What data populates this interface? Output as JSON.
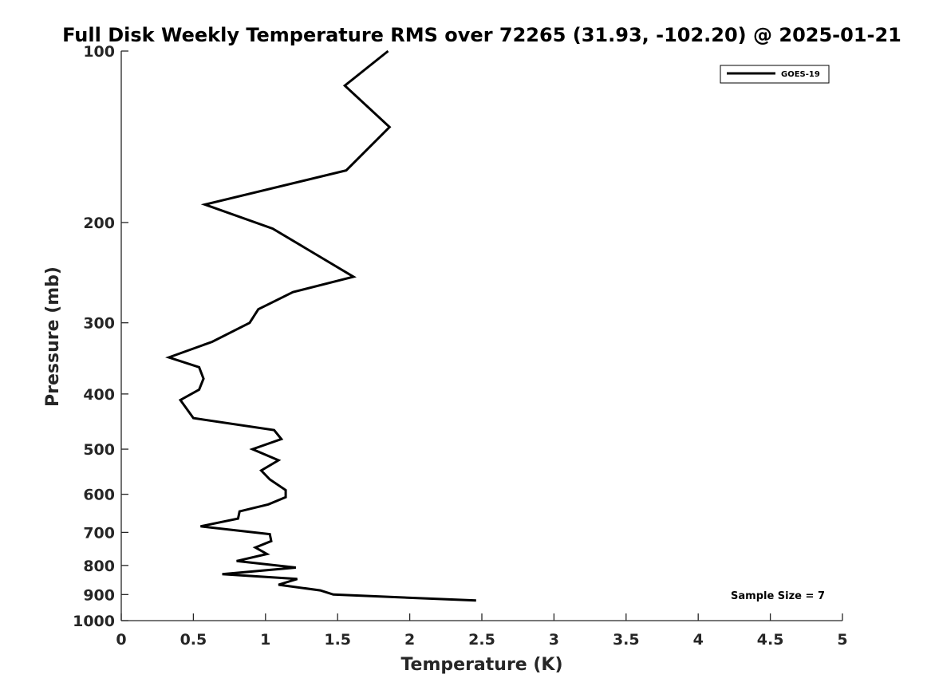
{
  "chart_data": {
    "type": "line",
    "title": "Full Disk Weekly Temperature RMS over 72265 (31.93, -102.20) @ 2025-01-21",
    "xlabel": "Temperature (K)",
    "ylabel": "Pressure (mb)",
    "xlim": [
      0,
      5
    ],
    "ylim": [
      100,
      1000
    ],
    "y_scale": "log",
    "y_reversed": true,
    "grid": false,
    "legend_position": "top-right",
    "x_ticks": [
      "0",
      "0.5",
      "1",
      "1.5",
      "2",
      "2.5",
      "3",
      "3.5",
      "4",
      "4.5",
      "5"
    ],
    "y_ticks": [
      "100",
      "200",
      "300",
      "400",
      "500",
      "600",
      "700",
      "800",
      "900",
      "1000"
    ],
    "series": [
      {
        "name": "GOES-19",
        "color": "#000000",
        "points": [
          [
            1.85,
            100
          ],
          [
            1.55,
            115
          ],
          [
            1.86,
            136
          ],
          [
            1.56,
            162
          ],
          [
            0.58,
            186
          ],
          [
            1.05,
            205
          ],
          [
            1.61,
            249
          ],
          [
            1.19,
            265
          ],
          [
            0.95,
            284
          ],
          [
            0.89,
            300
          ],
          [
            0.63,
            324
          ],
          [
            0.33,
            345
          ],
          [
            0.54,
            359
          ],
          [
            0.57,
            376
          ],
          [
            0.54,
            393
          ],
          [
            0.41,
            410
          ],
          [
            0.5,
            441
          ],
          [
            1.06,
            463
          ],
          [
            1.11,
            480
          ],
          [
            0.91,
            500
          ],
          [
            1.09,
            523
          ],
          [
            0.97,
            545
          ],
          [
            1.03,
            565
          ],
          [
            1.14,
            590
          ],
          [
            1.14,
            607
          ],
          [
            1.02,
            625
          ],
          [
            0.82,
            643
          ],
          [
            0.81,
            662
          ],
          [
            0.55,
            683
          ],
          [
            1.03,
            705
          ],
          [
            1.04,
            725
          ],
          [
            0.93,
            744
          ],
          [
            1.01,
            764
          ],
          [
            0.8,
            786
          ],
          [
            1.21,
            807
          ],
          [
            0.7,
            829
          ],
          [
            1.22,
            845
          ],
          [
            1.09,
            865
          ],
          [
            1.38,
            885
          ],
          [
            1.47,
            900
          ],
          [
            2.46,
            922
          ]
        ]
      }
    ],
    "annotations": [
      "Sample Size = 7"
    ]
  }
}
